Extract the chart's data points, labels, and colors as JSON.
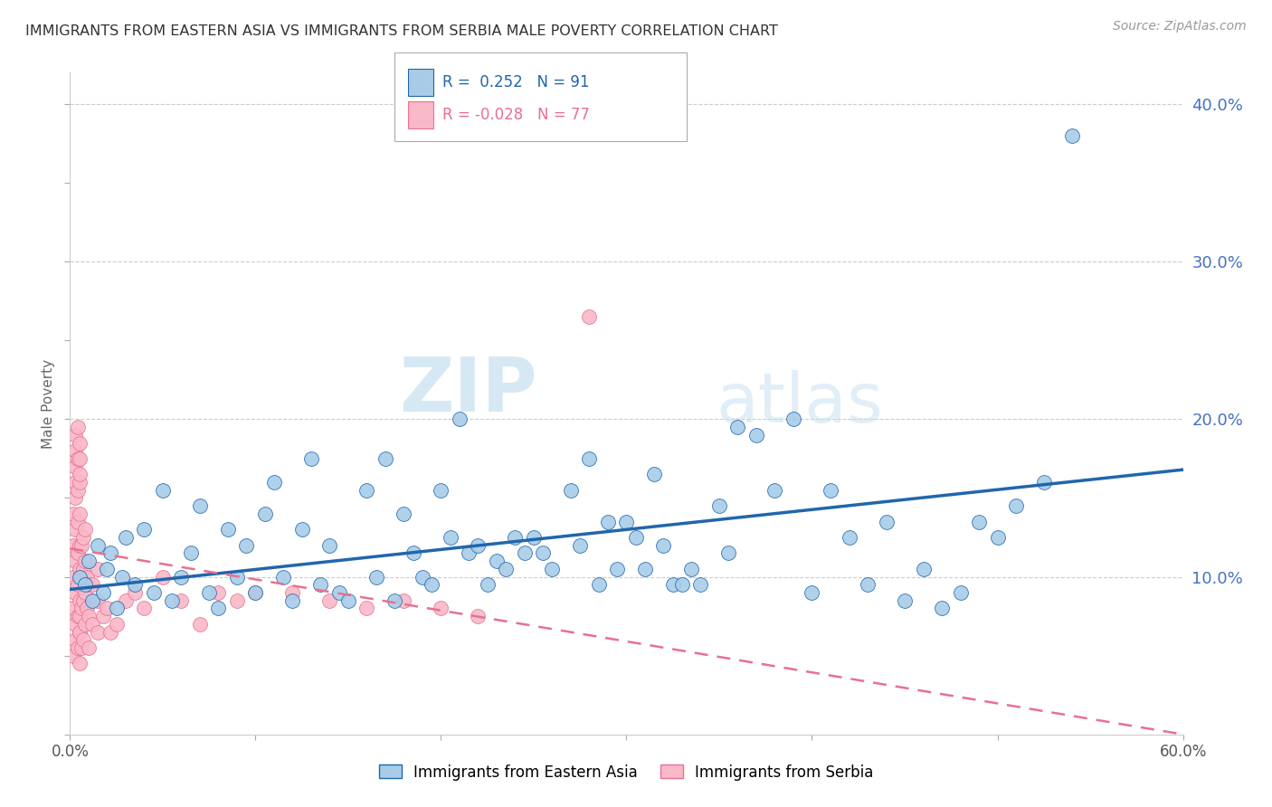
{
  "title": "IMMIGRANTS FROM EASTERN ASIA VS IMMIGRANTS FROM SERBIA MALE POVERTY CORRELATION CHART",
  "source": "Source: ZipAtlas.com",
  "ylabel": "Male Poverty",
  "xlim": [
    0.0,
    0.6
  ],
  "ylim": [
    0.0,
    0.42
  ],
  "x_ticks": [
    0.0,
    0.1,
    0.2,
    0.3,
    0.4,
    0.5,
    0.6
  ],
  "x_tick_labels": [
    "0.0%",
    "",
    "",
    "",
    "",
    "",
    "60.0%"
  ],
  "y_ticks_right": [
    0.1,
    0.2,
    0.3,
    0.4
  ],
  "y_tick_labels_right": [
    "10.0%",
    "20.0%",
    "30.0%",
    "40.0%"
  ],
  "color_blue": "#a8cce8",
  "color_pink": "#f9b8c8",
  "line_blue": "#2166ac",
  "line_pink": "#e87090",
  "watermark_zip": "ZIP",
  "watermark_atlas": "atlas",
  "blue_line_x0": 0.0,
  "blue_line_y0": 0.092,
  "blue_line_x1": 0.6,
  "blue_line_y1": 0.168,
  "pink_line_x0": 0.0,
  "pink_line_y0": 0.118,
  "pink_line_x1": 0.6,
  "pink_line_y1": 0.0,
  "eastern_asia_x": [
    0.005,
    0.008,
    0.01,
    0.012,
    0.015,
    0.018,
    0.02,
    0.022,
    0.025,
    0.028,
    0.03,
    0.035,
    0.04,
    0.045,
    0.05,
    0.055,
    0.06,
    0.065,
    0.07,
    0.075,
    0.08,
    0.085,
    0.09,
    0.095,
    0.1,
    0.105,
    0.11,
    0.115,
    0.12,
    0.125,
    0.13,
    0.135,
    0.14,
    0.145,
    0.15,
    0.16,
    0.165,
    0.17,
    0.175,
    0.18,
    0.185,
    0.19,
    0.195,
    0.2,
    0.205,
    0.21,
    0.215,
    0.22,
    0.225,
    0.23,
    0.235,
    0.24,
    0.245,
    0.25,
    0.255,
    0.26,
    0.27,
    0.275,
    0.28,
    0.285,
    0.29,
    0.295,
    0.3,
    0.305,
    0.31,
    0.315,
    0.32,
    0.325,
    0.33,
    0.335,
    0.34,
    0.35,
    0.355,
    0.36,
    0.37,
    0.38,
    0.39,
    0.4,
    0.41,
    0.42,
    0.43,
    0.44,
    0.45,
    0.46,
    0.47,
    0.48,
    0.49,
    0.5,
    0.51,
    0.525,
    0.54
  ],
  "eastern_asia_y": [
    0.1,
    0.095,
    0.11,
    0.085,
    0.12,
    0.09,
    0.105,
    0.115,
    0.08,
    0.1,
    0.125,
    0.095,
    0.13,
    0.09,
    0.155,
    0.085,
    0.1,
    0.115,
    0.145,
    0.09,
    0.08,
    0.13,
    0.1,
    0.12,
    0.09,
    0.14,
    0.16,
    0.1,
    0.085,
    0.13,
    0.175,
    0.095,
    0.12,
    0.09,
    0.085,
    0.155,
    0.1,
    0.175,
    0.085,
    0.14,
    0.115,
    0.1,
    0.095,
    0.155,
    0.125,
    0.2,
    0.115,
    0.12,
    0.095,
    0.11,
    0.105,
    0.125,
    0.115,
    0.125,
    0.115,
    0.105,
    0.155,
    0.12,
    0.175,
    0.095,
    0.135,
    0.105,
    0.135,
    0.125,
    0.105,
    0.165,
    0.12,
    0.095,
    0.095,
    0.105,
    0.095,
    0.145,
    0.115,
    0.195,
    0.19,
    0.155,
    0.2,
    0.09,
    0.155,
    0.125,
    0.095,
    0.135,
    0.085,
    0.105,
    0.08,
    0.09,
    0.135,
    0.125,
    0.145,
    0.16,
    0.38
  ],
  "serbia_x": [
    0.002,
    0.002,
    0.002,
    0.002,
    0.002,
    0.003,
    0.003,
    0.003,
    0.003,
    0.003,
    0.003,
    0.003,
    0.003,
    0.003,
    0.003,
    0.004,
    0.004,
    0.004,
    0.004,
    0.004,
    0.004,
    0.004,
    0.004,
    0.005,
    0.005,
    0.005,
    0.005,
    0.005,
    0.005,
    0.005,
    0.005,
    0.005,
    0.005,
    0.005,
    0.005,
    0.006,
    0.006,
    0.006,
    0.006,
    0.007,
    0.007,
    0.007,
    0.007,
    0.008,
    0.008,
    0.008,
    0.008,
    0.009,
    0.009,
    0.01,
    0.01,
    0.01,
    0.012,
    0.012,
    0.015,
    0.015,
    0.015,
    0.018,
    0.02,
    0.022,
    0.025,
    0.03,
    0.035,
    0.04,
    0.05,
    0.06,
    0.07,
    0.08,
    0.09,
    0.1,
    0.12,
    0.14,
    0.16,
    0.18,
    0.2,
    0.22,
    0.28
  ],
  "serbia_y": [
    0.05,
    0.08,
    0.1,
    0.12,
    0.14,
    0.06,
    0.07,
    0.09,
    0.11,
    0.13,
    0.15,
    0.16,
    0.17,
    0.18,
    0.19,
    0.055,
    0.075,
    0.095,
    0.115,
    0.135,
    0.155,
    0.175,
    0.195,
    0.045,
    0.065,
    0.085,
    0.105,
    0.12,
    0.14,
    0.16,
    0.165,
    0.175,
    0.185,
    0.065,
    0.075,
    0.055,
    0.08,
    0.1,
    0.12,
    0.06,
    0.085,
    0.105,
    0.125,
    0.07,
    0.09,
    0.11,
    0.13,
    0.08,
    0.1,
    0.055,
    0.075,
    0.095,
    0.07,
    0.095,
    0.065,
    0.085,
    0.105,
    0.075,
    0.08,
    0.065,
    0.07,
    0.085,
    0.09,
    0.08,
    0.1,
    0.085,
    0.07,
    0.09,
    0.085,
    0.09,
    0.09,
    0.085,
    0.08,
    0.085,
    0.08,
    0.075,
    0.265
  ]
}
